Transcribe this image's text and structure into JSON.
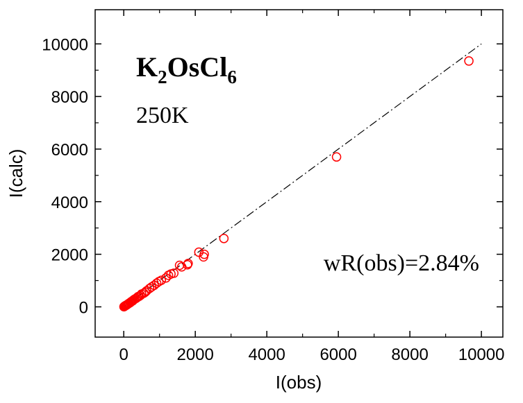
{
  "chart_data": {
    "type": "scatter",
    "xlabel": "I(obs)",
    "ylabel": "I(calc)",
    "xlim": [
      -800,
      10600
    ],
    "ylim": [
      -1150,
      11300
    ],
    "xticks": [
      0,
      2000,
      4000,
      6000,
      8000,
      10000
    ],
    "xtick_labels": [
      "0",
      "2000",
      "4000",
      "6000",
      "8000",
      "10000"
    ],
    "yticks": [
      0,
      2000,
      4000,
      6000,
      8000,
      10000
    ],
    "ytick_labels": [
      "0",
      "2000",
      "4000",
      "6000",
      "8000",
      "10000"
    ],
    "grid": false,
    "marker_color": "#ff0000",
    "reference_line": {
      "x": [
        0,
        10000
      ],
      "y": [
        0,
        10000
      ],
      "style": "dash-dot",
      "color": "#000000"
    },
    "annotations": {
      "compound": {
        "base1": "K",
        "sub1": "2",
        "base2": "OsCl",
        "sub2": "6"
      },
      "temperature": "250K",
      "wr": "wR(obs)=2.84%"
    },
    "series": [
      {
        "x": [
          9650,
          5950,
          2800,
          2250,
          2230,
          2100,
          1800,
          1780,
          1620,
          1560,
          1400,
          1320,
          1250,
          1180,
          1050,
          980,
          920,
          850,
          780,
          720,
          640,
          600,
          560,
          500,
          470,
          430,
          400,
          370,
          340,
          300,
          270,
          250,
          220,
          200,
          180,
          150,
          130,
          110,
          90,
          70,
          50,
          40,
          30,
          20,
          10,
          5
        ],
        "y": [
          9350,
          5700,
          2600,
          2000,
          1900,
          2080,
          1650,
          1600,
          1520,
          1580,
          1280,
          1250,
          1200,
          1100,
          1010,
          960,
          900,
          820,
          760,
          700,
          610,
          560,
          520,
          490,
          440,
          400,
          390,
          350,
          320,
          290,
          260,
          230,
          210,
          190,
          160,
          140,
          120,
          100,
          80,
          60,
          50,
          40,
          30,
          20,
          10,
          5
        ]
      }
    ]
  }
}
